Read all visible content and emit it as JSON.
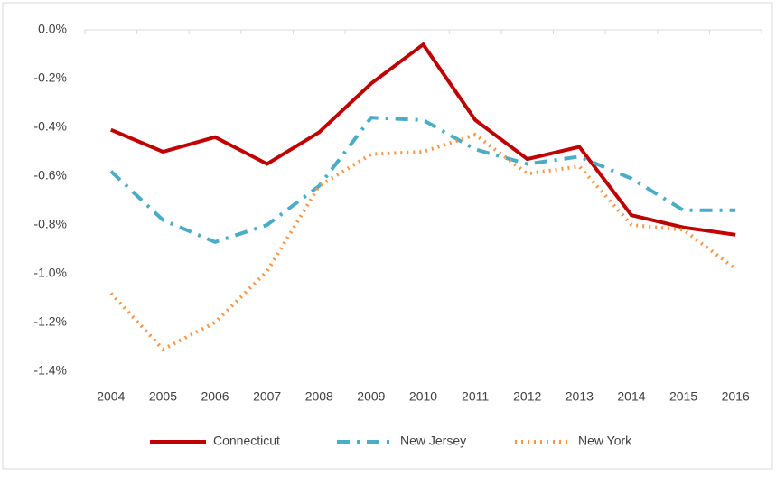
{
  "chart_data": {
    "type": "line",
    "categories": [
      "2004",
      "2005",
      "2006",
      "2007",
      "2008",
      "2009",
      "2010",
      "2011",
      "2012",
      "2013",
      "2014",
      "2015",
      "2016"
    ],
    "series": [
      {
        "name": "Connecticut",
        "color": "#c00000",
        "dash": "solid",
        "values": [
          -0.41,
          -0.5,
          -0.44,
          -0.55,
          -0.42,
          -0.22,
          -0.06,
          -0.37,
          -0.53,
          -0.48,
          -0.76,
          -0.81,
          -0.84
        ]
      },
      {
        "name": "New Jersey",
        "color": "#4bacc6",
        "dash": "dash-dot",
        "values": [
          -0.58,
          -0.78,
          -0.87,
          -0.8,
          -0.64,
          -0.36,
          -0.37,
          -0.49,
          -0.55,
          -0.52,
          -0.61,
          -0.74,
          -0.74
        ]
      },
      {
        "name": "New York",
        "color": "#f79646",
        "dash": "dot",
        "values": [
          -1.08,
          -1.31,
          -1.2,
          -0.99,
          -0.64,
          -0.51,
          -0.5,
          -0.43,
          -0.59,
          -0.56,
          -0.8,
          -0.82,
          -0.98
        ]
      }
    ],
    "ylim": [
      -1.4,
      0
    ],
    "yticks": [
      {
        "value": 0,
        "label": "0.0%"
      },
      {
        "value": -0.2,
        "label": "-0.2%"
      },
      {
        "value": -0.4,
        "label": "-0.4%"
      },
      {
        "value": -0.6,
        "label": "-0.6%"
      },
      {
        "value": -0.8,
        "label": "-0.8%"
      },
      {
        "value": -1.0,
        "label": "-1.0%"
      },
      {
        "value": -1.2,
        "label": "-1.2%"
      },
      {
        "value": -1.4,
        "label": "-1.4%"
      }
    ],
    "grid": false,
    "legend": "bottom"
  }
}
